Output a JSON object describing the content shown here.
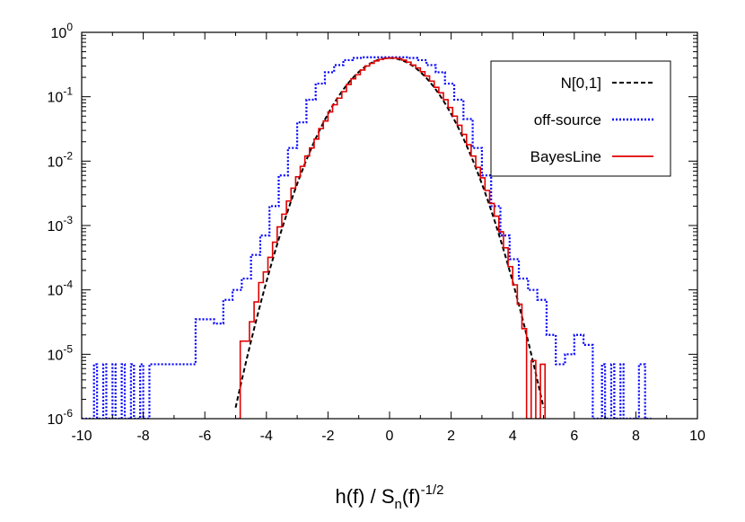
{
  "chart_data": {
    "type": "line",
    "xlabel": {
      "main": "h(f) / S",
      "sub": "n",
      "mid": "(f)",
      "sup": "-1/2"
    },
    "xlim": [
      -10,
      10
    ],
    "ylim": [
      1e-06,
      1
    ],
    "yscale": "log",
    "grid": false,
    "legend_position": "top-right",
    "x_ticks": [
      -10,
      -8,
      -6,
      -4,
      -2,
      0,
      2,
      4,
      6,
      8,
      10
    ],
    "x_tick_labels": [
      "-10",
      "-8",
      "-6",
      "-4",
      "-2",
      "0",
      "2",
      "4",
      "6",
      "8",
      "10"
    ],
    "y_ticks": [
      {
        "value": 1,
        "base": "10",
        "exp": "0"
      },
      {
        "value": 0.1,
        "base": "10",
        "exp": "-1"
      },
      {
        "value": 0.01,
        "base": "10",
        "exp": "-2"
      },
      {
        "value": 0.001,
        "base": "10",
        "exp": "-3"
      },
      {
        "value": 0.0001,
        "base": "10",
        "exp": "-4"
      },
      {
        "value": 1e-05,
        "base": "10",
        "exp": "-5"
      },
      {
        "value": 1e-06,
        "base": "10",
        "exp": "-6"
      }
    ],
    "series": [
      {
        "name": "N[0,1]",
        "style": "dashed",
        "color": "#000000",
        "function": "standard-normal-pdf",
        "x_range": [
          -5.0,
          5.0
        ]
      },
      {
        "name": "off-source",
        "style": "dotted-step",
        "color": "#0000ff",
        "x": [
          -10.0,
          -9.6,
          -9.5,
          -9.3,
          -9.2,
          -9.0,
          -8.9,
          -8.7,
          -8.6,
          -8.4,
          -8.3,
          -8.1,
          -8.0,
          -7.8,
          -7.5,
          -6.3,
          -6.0,
          -5.7,
          -5.4,
          -5.1,
          -4.8,
          -4.5,
          -4.2,
          -3.9,
          -3.6,
          -3.3,
          -3.0,
          -2.7,
          -2.4,
          -2.1,
          -1.8,
          -1.5,
          -1.2,
          -0.9,
          -0.6,
          -0.3,
          0.0,
          0.3,
          0.6,
          0.9,
          1.2,
          1.5,
          1.8,
          2.1,
          2.4,
          2.7,
          3.0,
          3.3,
          3.6,
          3.9,
          4.2,
          4.5,
          4.8,
          5.1,
          5.4,
          5.7,
          6.0,
          6.3,
          6.6,
          6.9,
          7.0,
          7.2,
          7.3,
          7.5,
          7.6,
          7.8,
          8.1,
          8.3,
          8.5
        ],
        "y": [
          1e-06,
          7e-06,
          1e-06,
          7e-06,
          1e-06,
          7e-06,
          1e-06,
          7e-06,
          1e-06,
          7e-06,
          1e-06,
          7e-06,
          1e-06,
          7e-06,
          7e-06,
          3.5e-05,
          3.5e-05,
          3e-05,
          7e-05,
          0.0001,
          0.00015,
          0.00035,
          0.0007,
          0.002,
          0.006,
          0.016,
          0.04,
          0.09,
          0.16,
          0.24,
          0.31,
          0.37,
          0.4,
          0.41,
          0.41,
          0.41,
          0.41,
          0.41,
          0.4,
          0.37,
          0.31,
          0.24,
          0.16,
          0.09,
          0.045,
          0.016,
          0.006,
          0.002,
          0.0007,
          0.0003,
          0.00015,
          0.0001,
          7e-05,
          2e-05,
          7e-06,
          1e-05,
          2e-05,
          1.4e-05,
          1e-06,
          7e-06,
          1e-06,
          7e-06,
          1e-06,
          7e-06,
          1e-06,
          1e-06,
          7e-06,
          1e-06,
          1e-06
        ]
      },
      {
        "name": "BayesLine",
        "style": "solid-step",
        "color": "#e00000",
        "x": [
          -5.0,
          -4.85,
          -4.7,
          -4.55,
          -4.4,
          -4.25,
          -4.1,
          -3.95,
          -3.8,
          -3.65,
          -3.5,
          -3.35,
          -3.2,
          -3.05,
          -2.9,
          -2.75,
          -2.6,
          -2.45,
          -2.3,
          -2.15,
          -2.0,
          -1.85,
          -1.7,
          -1.55,
          -1.4,
          -1.25,
          -1.1,
          -0.95,
          -0.8,
          -0.65,
          -0.5,
          -0.35,
          -0.2,
          -0.05,
          0.1,
          0.25,
          0.4,
          0.55,
          0.7,
          0.85,
          1.0,
          1.15,
          1.3,
          1.45,
          1.6,
          1.75,
          1.9,
          2.05,
          2.2,
          2.35,
          2.5,
          2.65,
          2.8,
          2.95,
          3.1,
          3.25,
          3.4,
          3.55,
          3.7,
          3.85,
          4.0,
          4.15,
          4.3,
          4.45,
          4.6,
          4.75,
          4.9,
          5.05
        ],
        "y": [
          1e-06,
          1.6e-05,
          1.6e-05,
          3.2e-05,
          6.5e-05,
          0.00013,
          0.00019,
          0.00032,
          0.00055,
          0.00095,
          0.0015,
          0.0024,
          0.0038,
          0.0057,
          0.0083,
          0.012,
          0.016,
          0.022,
          0.032,
          0.042,
          0.058,
          0.075,
          0.095,
          0.12,
          0.155,
          0.19,
          0.22,
          0.26,
          0.3,
          0.33,
          0.36,
          0.38,
          0.395,
          0.4,
          0.4,
          0.39,
          0.37,
          0.345,
          0.31,
          0.28,
          0.245,
          0.21,
          0.175,
          0.14,
          0.115,
          0.09,
          0.068,
          0.05,
          0.036,
          0.026,
          0.018,
          0.012,
          0.008,
          0.0055,
          0.0035,
          0.0022,
          0.0014,
          0.0008,
          0.00045,
          0.00023,
          0.00012,
          6e-05,
          2.5e-05,
          1e-06,
          8e-06,
          1e-06,
          7e-06,
          1e-06
        ]
      }
    ]
  }
}
